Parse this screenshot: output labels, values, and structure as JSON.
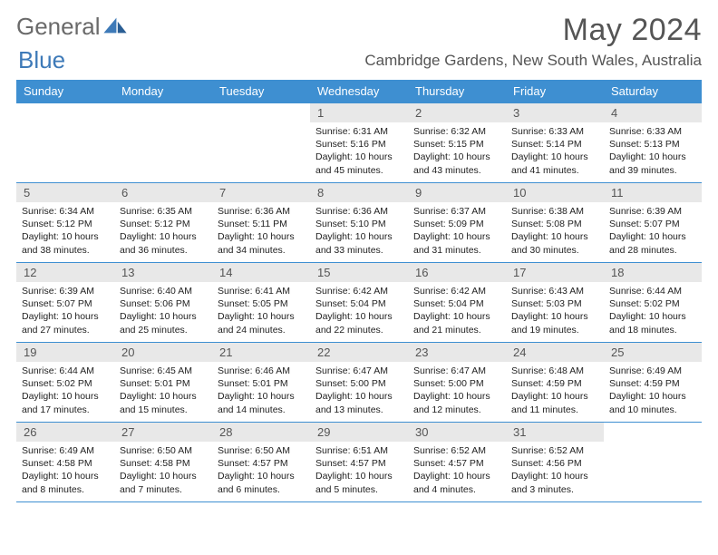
{
  "brand": {
    "part1": "General",
    "part2": "Blue"
  },
  "title": "May 2024",
  "location": "Cambridge Gardens, New South Wales, Australia",
  "colors": {
    "header_bg": "#3e8fd1",
    "header_text": "#ffffff",
    "daynum_bg": "#e8e8e8",
    "border": "#3e8fd1",
    "body_text": "#222222",
    "page_bg": "#ffffff",
    "brand_gray": "#6a6a6a",
    "brand_blue": "#3e7ab8"
  },
  "fonts": {
    "family": "Arial",
    "month_title_size": 34,
    "location_size": 17,
    "weekday_size": 13,
    "daynum_size": 13,
    "body_size": 10.5
  },
  "calendar": {
    "type": "table",
    "columns": [
      "Sunday",
      "Monday",
      "Tuesday",
      "Wednesday",
      "Thursday",
      "Friday",
      "Saturday"
    ],
    "rows": [
      [
        null,
        null,
        null,
        {
          "n": "1",
          "sr": "6:31 AM",
          "ss": "5:16 PM",
          "h": 10,
          "m": 45
        },
        {
          "n": "2",
          "sr": "6:32 AM",
          "ss": "5:15 PM",
          "h": 10,
          "m": 43
        },
        {
          "n": "3",
          "sr": "6:33 AM",
          "ss": "5:14 PM",
          "h": 10,
          "m": 41
        },
        {
          "n": "4",
          "sr": "6:33 AM",
          "ss": "5:13 PM",
          "h": 10,
          "m": 39
        }
      ],
      [
        {
          "n": "5",
          "sr": "6:34 AM",
          "ss": "5:12 PM",
          "h": 10,
          "m": 38
        },
        {
          "n": "6",
          "sr": "6:35 AM",
          "ss": "5:12 PM",
          "h": 10,
          "m": 36
        },
        {
          "n": "7",
          "sr": "6:36 AM",
          "ss": "5:11 PM",
          "h": 10,
          "m": 34
        },
        {
          "n": "8",
          "sr": "6:36 AM",
          "ss": "5:10 PM",
          "h": 10,
          "m": 33
        },
        {
          "n": "9",
          "sr": "6:37 AM",
          "ss": "5:09 PM",
          "h": 10,
          "m": 31
        },
        {
          "n": "10",
          "sr": "6:38 AM",
          "ss": "5:08 PM",
          "h": 10,
          "m": 30
        },
        {
          "n": "11",
          "sr": "6:39 AM",
          "ss": "5:07 PM",
          "h": 10,
          "m": 28
        }
      ],
      [
        {
          "n": "12",
          "sr": "6:39 AM",
          "ss": "5:07 PM",
          "h": 10,
          "m": 27
        },
        {
          "n": "13",
          "sr": "6:40 AM",
          "ss": "5:06 PM",
          "h": 10,
          "m": 25
        },
        {
          "n": "14",
          "sr": "6:41 AM",
          "ss": "5:05 PM",
          "h": 10,
          "m": 24
        },
        {
          "n": "15",
          "sr": "6:42 AM",
          "ss": "5:04 PM",
          "h": 10,
          "m": 22
        },
        {
          "n": "16",
          "sr": "6:42 AM",
          "ss": "5:04 PM",
          "h": 10,
          "m": 21
        },
        {
          "n": "17",
          "sr": "6:43 AM",
          "ss": "5:03 PM",
          "h": 10,
          "m": 19
        },
        {
          "n": "18",
          "sr": "6:44 AM",
          "ss": "5:02 PM",
          "h": 10,
          "m": 18
        }
      ],
      [
        {
          "n": "19",
          "sr": "6:44 AM",
          "ss": "5:02 PM",
          "h": 10,
          "m": 17
        },
        {
          "n": "20",
          "sr": "6:45 AM",
          "ss": "5:01 PM",
          "h": 10,
          "m": 15
        },
        {
          "n": "21",
          "sr": "6:46 AM",
          "ss": "5:01 PM",
          "h": 10,
          "m": 14
        },
        {
          "n": "22",
          "sr": "6:47 AM",
          "ss": "5:00 PM",
          "h": 10,
          "m": 13
        },
        {
          "n": "23",
          "sr": "6:47 AM",
          "ss": "5:00 PM",
          "h": 10,
          "m": 12
        },
        {
          "n": "24",
          "sr": "6:48 AM",
          "ss": "4:59 PM",
          "h": 10,
          "m": 11
        },
        {
          "n": "25",
          "sr": "6:49 AM",
          "ss": "4:59 PM",
          "h": 10,
          "m": 10
        }
      ],
      [
        {
          "n": "26",
          "sr": "6:49 AM",
          "ss": "4:58 PM",
          "h": 10,
          "m": 8
        },
        {
          "n": "27",
          "sr": "6:50 AM",
          "ss": "4:58 PM",
          "h": 10,
          "m": 7
        },
        {
          "n": "28",
          "sr": "6:50 AM",
          "ss": "4:57 PM",
          "h": 10,
          "m": 6
        },
        {
          "n": "29",
          "sr": "6:51 AM",
          "ss": "4:57 PM",
          "h": 10,
          "m": 5
        },
        {
          "n": "30",
          "sr": "6:52 AM",
          "ss": "4:57 PM",
          "h": 10,
          "m": 4
        },
        {
          "n": "31",
          "sr": "6:52 AM",
          "ss": "4:56 PM",
          "h": 10,
          "m": 3
        },
        null
      ]
    ],
    "labels": {
      "sunrise": "Sunrise:",
      "sunset": "Sunset:",
      "daylight_prefix": "Daylight:",
      "hours_word": "hours",
      "and_word": "and",
      "minutes_word": "minutes."
    }
  }
}
